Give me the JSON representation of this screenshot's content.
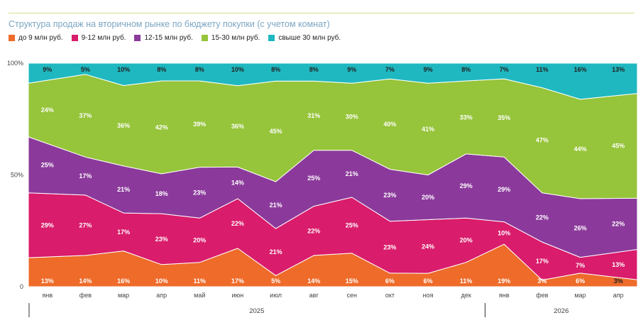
{
  "title": "Структура продаж на вторичном рынке по бюджету покупки (с учетом комнат)",
  "colors": {
    "accent_rule": "#d7de8c",
    "title": "#7ba6c2"
  },
  "chart_data": {
    "type": "area",
    "stacked": true,
    "normalized": true,
    "title": "Структура продаж на вторичном рынке по бюджету покупки (с учетом комнат)",
    "categories": [
      "янв",
      "фев",
      "мар",
      "апр",
      "май",
      "июн",
      "июл",
      "авг",
      "сен",
      "окт",
      "ноя",
      "дек",
      "янв",
      "фев",
      "мар",
      "апр"
    ],
    "years": [
      {
        "label": "2025",
        "from": 0,
        "to": 11
      },
      {
        "label": "2026",
        "from": 12,
        "to": 15
      }
    ],
    "y_ticks": [
      "0",
      "50%",
      "100%"
    ],
    "ylim": [
      0,
      100
    ],
    "legend_position": "top-left",
    "series": [
      {
        "name": "до 9 млн руб.",
        "color": "#ee6b2a",
        "values": [
          13,
          14,
          16,
          10,
          11,
          17,
          5,
          14,
          15,
          6,
          6,
          11,
          19,
          3,
          6,
          3
        ]
      },
      {
        "name": "9-12 млн руб.",
        "color": "#d91c6b",
        "values": [
          29,
          27,
          17,
          23,
          20,
          22,
          21,
          22,
          25,
          23,
          24,
          20,
          10,
          17,
          7,
          13
        ]
      },
      {
        "name": "12-15 млн руб.",
        "color": "#8b3a9b",
        "values": [
          25,
          17,
          21,
          18,
          23,
          14,
          21,
          25,
          21,
          23,
          20,
          29,
          29,
          22,
          26,
          22
        ]
      },
      {
        "name": "15-30 млн руб.",
        "color": "#96c43a",
        "values": [
          24,
          37,
          36,
          42,
          39,
          36,
          45,
          31,
          30,
          40,
          41,
          33,
          35,
          47,
          44,
          45
        ]
      },
      {
        "name": "свыше 30 млн руб.",
        "color": "#1fb8c0",
        "values": [
          9,
          5,
          10,
          8,
          8,
          10,
          8,
          8,
          9,
          7,
          9,
          8,
          7,
          11,
          16,
          13
        ]
      }
    ]
  }
}
